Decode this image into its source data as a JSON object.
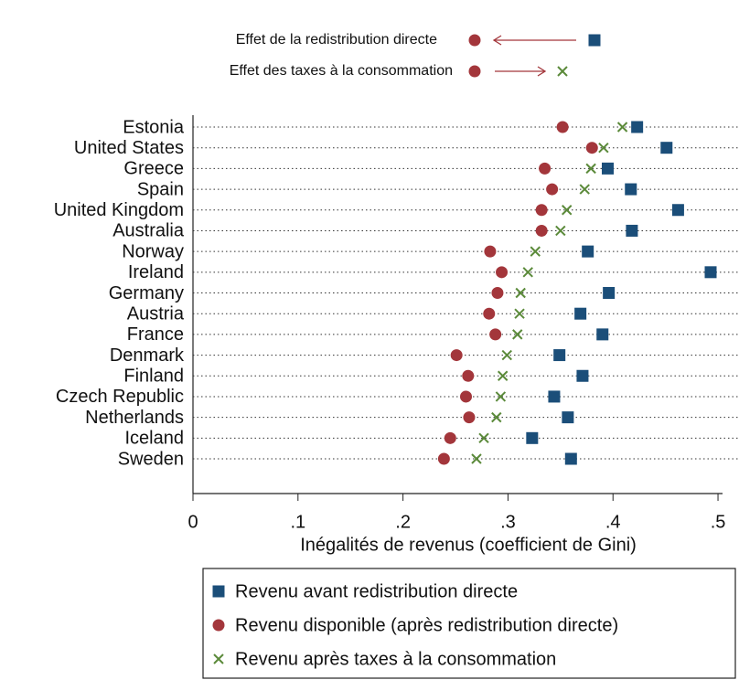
{
  "chart_data": {
    "type": "dot",
    "annotations": [
      {
        "text": "Effet de la redistribution directe",
        "from": "Revenu avant redistribution directe",
        "to": "Revenu disponible (après redistribution directe)"
      },
      {
        "text": "Effet des taxes à la consommation",
        "from": "Revenu disponible (après redistribution directe)",
        "to": "Revenu après taxes à la consommation"
      }
    ],
    "categories": [
      "Estonia",
      "United States",
      "Greece",
      "Spain",
      "United Kingdom",
      "Australia",
      "Norway",
      "Ireland",
      "Germany",
      "Austria",
      "France",
      "Denmark",
      "Finland",
      "Czech Republic",
      "Netherlands",
      "Iceland",
      "Sweden"
    ],
    "series": [
      {
        "name": "Revenu avant redistribution directe",
        "color": "#1b4e79",
        "marker": "square",
        "values": [
          0.423,
          0.451,
          0.395,
          0.417,
          0.462,
          0.418,
          0.376,
          0.493,
          0.396,
          0.369,
          0.39,
          0.349,
          0.371,
          0.344,
          0.357,
          0.323,
          0.36
        ]
      },
      {
        "name": "Revenu disponible (après redistribution directe)",
        "color": "#a3363b",
        "marker": "circle",
        "values": [
          0.352,
          0.38,
          0.335,
          0.342,
          0.332,
          0.332,
          0.283,
          0.294,
          0.29,
          0.282,
          0.288,
          0.251,
          0.262,
          0.26,
          0.263,
          0.245,
          0.239
        ]
      },
      {
        "name": "Revenu après taxes à la consommation",
        "color": "#5b8a3a",
        "marker": "x",
        "values": [
          0.409,
          0.391,
          0.379,
          0.373,
          0.356,
          0.35,
          0.326,
          0.319,
          0.312,
          0.311,
          0.309,
          0.299,
          0.295,
          0.293,
          0.289,
          0.277,
          0.27
        ]
      }
    ],
    "x_label": "Inégalités de revenus (coefficient de Gini)",
    "xlim": [
      0,
      0.52
    ],
    "xticks": [
      0,
      {
        "value": 0.1,
        "label": ".1"
      },
      {
        "value": 0.2,
        "label": ".2"
      },
      {
        "value": 0.3,
        "label": ".3"
      },
      {
        "value": 0.4,
        "label": ".4"
      },
      {
        "value": 0.5,
        "label": ".5"
      }
    ],
    "legend": "bottom"
  }
}
